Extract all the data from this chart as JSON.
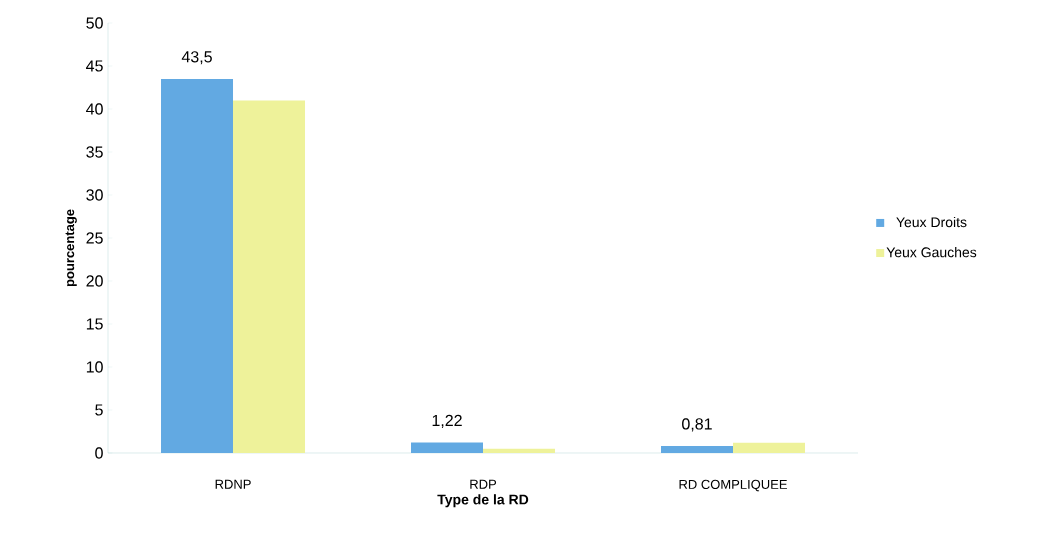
{
  "chart_data": {
    "type": "bar",
    "xlabel": "Type de la RD",
    "ylabel": "pourcentage",
    "categories": [
      "RDNP",
      "RDP",
      "RD COMPLIQUEE"
    ],
    "series": [
      {
        "name": "Yeux  Droits",
        "color": "#62a9e2",
        "values": [
          43.5,
          1.22,
          0.81
        ],
        "value_labels": [
          "43,5",
          "1,22",
          "0,81"
        ]
      },
      {
        "name": "Yeux Gauches",
        "color": "#eef29a",
        "values": [
          41,
          0.5,
          1.2
        ]
      }
    ],
    "ylim": [
      0,
      50
    ],
    "yticks": [
      0,
      5,
      10,
      15,
      20,
      25,
      30,
      35,
      40,
      45,
      50
    ],
    "grid": false,
    "legend": "right"
  }
}
